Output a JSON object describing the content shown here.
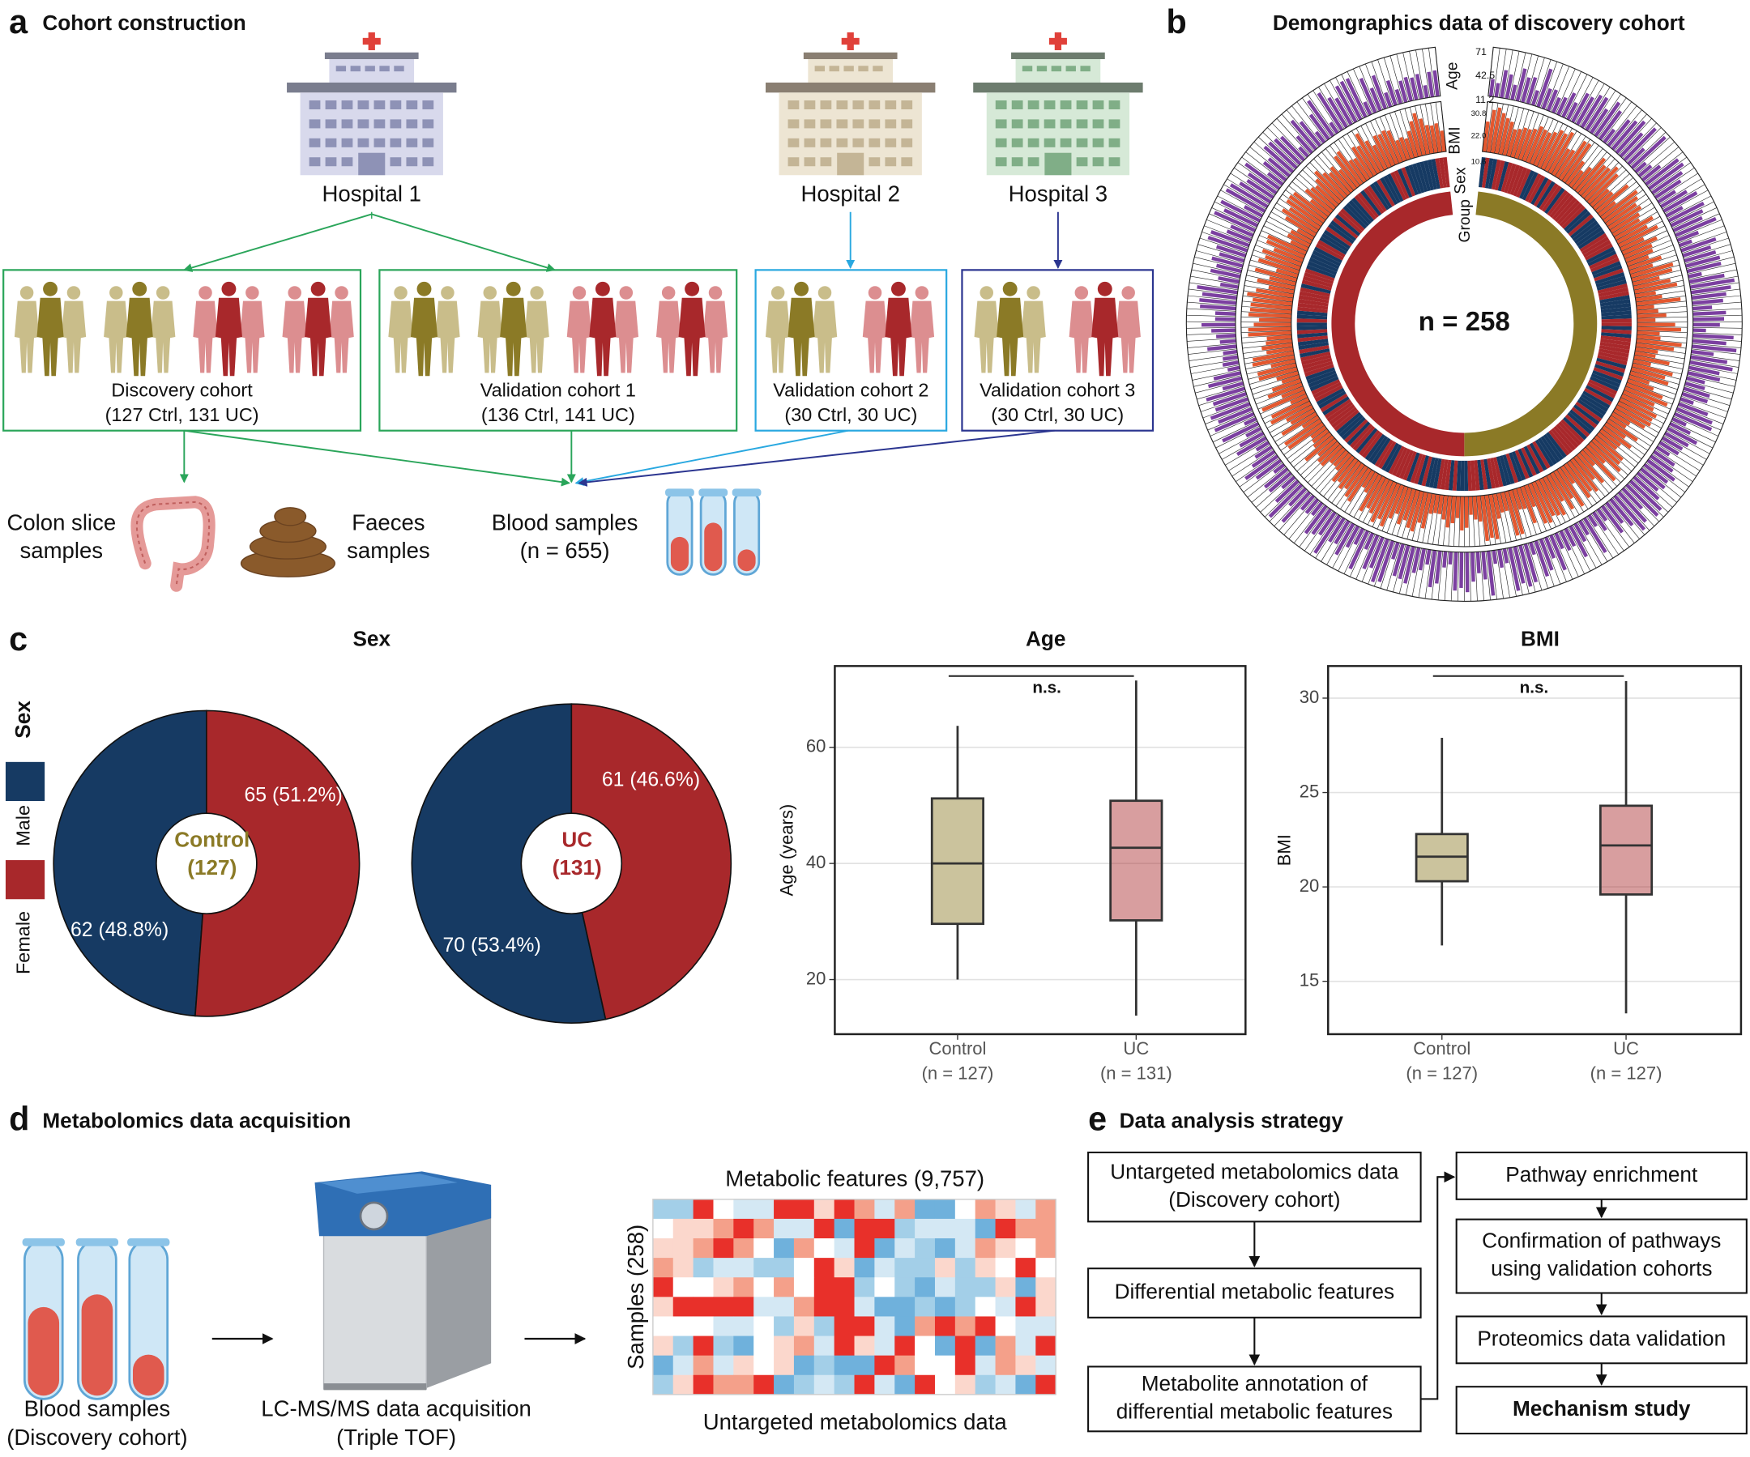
{
  "panel_a": {
    "label": "a",
    "title": "Cohort construction",
    "hospitals": [
      "Hospital 1",
      "Hospital 2",
      "Hospital 3"
    ],
    "cohorts": [
      {
        "name": "Discovery cohort",
        "detail": "(127 Ctrl, 131 UC)"
      },
      {
        "name": "Validation cohort 1",
        "detail": "(136 Ctrl, 141 UC)"
      },
      {
        "name": "Validation cohort 2",
        "detail": "(30 Ctrl, 30 UC)"
      },
      {
        "name": "Validation cohort 3",
        "detail": "(30 Ctrl, 30 UC)"
      }
    ],
    "samples": [
      [
        "Colon slice",
        "samples"
      ],
      [
        "Faeces",
        "samples"
      ],
      [
        "Blood samples",
        "(n = 655)"
      ]
    ]
  },
  "panel_b": {
    "label": "b",
    "title": "Demongraphics data of discovery cohort",
    "tracks": [
      "Age",
      "BMI",
      "Sex",
      "Group"
    ],
    "age_ticks": [
      "71",
      "42.5",
      "11.2"
    ],
    "bmi_ticks": [
      "30.8",
      "22.0",
      "10.6"
    ],
    "center": "n = 258"
  },
  "panel_c": {
    "label": "c",
    "title": "Sex",
    "legend_title": "Sex",
    "legend": [
      "Male",
      "Female"
    ]
  },
  "chart_data": [
    {
      "type": "pie",
      "categories": [
        "Male",
        "Female"
      ],
      "values": [
        62,
        65
      ],
      "value_labels": [
        "62 (48.8%)",
        "65 (51.2%)"
      ],
      "colors": [
        "#163a63",
        "#a8282b"
      ],
      "center_label": [
        "Control",
        "(127)"
      ],
      "center_color": "#8b7a26"
    },
    {
      "type": "pie",
      "categories": [
        "Male",
        "Female"
      ],
      "values": [
        70,
        61
      ],
      "value_labels": [
        "70 (53.4%)",
        "61 (46.6%)"
      ],
      "colors": [
        "#163a63",
        "#a8282b"
      ],
      "center_label": [
        "UC",
        "(131)"
      ],
      "center_color": "#a8282b"
    },
    {
      "type": "box",
      "title": "Age",
      "ylabel": "Age (years)",
      "categories": [
        "Control",
        "UC"
      ],
      "category_notes": [
        "(n = 127)",
        "(n = 131)"
      ],
      "boxes": [
        {
          "min": 20,
          "q1": 29.6,
          "median": 40,
          "q3": 51.2,
          "max": 63.7,
          "color": "#8b7a26"
        },
        {
          "min": 13.8,
          "q1": 30.2,
          "median": 42.7,
          "q3": 50.8,
          "max": 71.5,
          "color": "#a8282b"
        }
      ],
      "ylim": [
        10.6,
        74
      ],
      "yticks": [
        20,
        40,
        60
      ],
      "grid": true,
      "annotation": "n.s."
    },
    {
      "type": "box",
      "title": "BMI",
      "ylabel": "BMI",
      "categories": [
        "Control",
        "UC"
      ],
      "category_notes": [
        "(n = 127)",
        "(n = 127)"
      ],
      "boxes": [
        {
          "min": 16.9,
          "q1": 20.3,
          "median": 21.6,
          "q3": 22.8,
          "max": 27.9,
          "color": "#8b7a26"
        },
        {
          "min": 13.3,
          "q1": 19.6,
          "median": 22.2,
          "q3": 24.3,
          "max": 30.9,
          "color": "#a8282b"
        }
      ],
      "ylim": [
        12.2,
        31.7
      ],
      "yticks": [
        15,
        20,
        25,
        30
      ],
      "grid": true,
      "annotation": "n.s."
    }
  ],
  "panel_d": {
    "label": "d",
    "title": "Metabolomics data acquisition",
    "steps": [
      [
        "Blood samples",
        "(Discovery cohort)"
      ],
      [
        "LC-MS/MS data acquisition",
        "(Triple TOF)"
      ]
    ],
    "heatmap_title": "Metabolic features (9,757)",
    "heatmap_ylabel": "Samples (258)",
    "heatmap_caption": "Untargeted metabolomics data"
  },
  "panel_e": {
    "label": "e",
    "title": "Data analysis strategy",
    "left_steps": [
      [
        "Untargeted metabolomics data",
        "(Discovery cohort)"
      ],
      [
        "Differential metabolic features"
      ],
      [
        "Metabolite annotation of",
        "differential metabolic features"
      ]
    ],
    "right_steps": [
      [
        "Pathway enrichment"
      ],
      [
        "Confirmation of pathways",
        "using validation cohorts"
      ],
      [
        "Proteomics data validation"
      ],
      [
        "Mechanism study"
      ]
    ]
  }
}
